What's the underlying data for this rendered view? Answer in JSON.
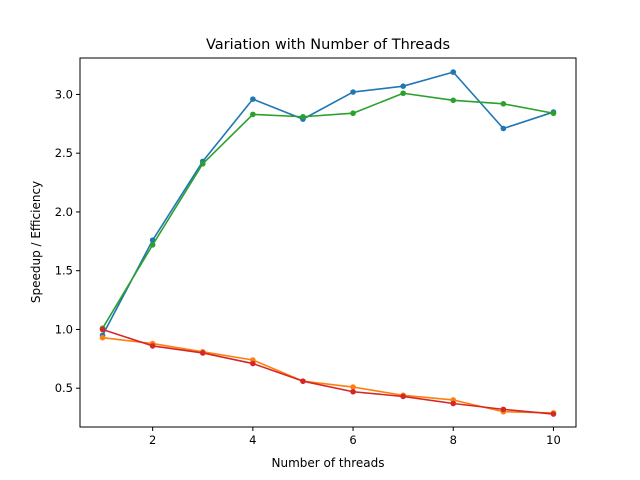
{
  "chart_data": {
    "type": "line",
    "title": "Variation with Number of Threads",
    "xlabel": "Number of threads",
    "ylabel": "Speedup / Efficiency",
    "xlim": [
      0.55,
      10.45
    ],
    "ylim": [
      0.17,
      3.31
    ],
    "x_ticks": [
      2,
      4,
      6,
      8,
      10
    ],
    "y_ticks": [
      0.5,
      1.0,
      1.5,
      2.0,
      2.5,
      3.0
    ],
    "x_tick_labels": [
      "2",
      "4",
      "6",
      "8",
      "10"
    ],
    "y_tick_labels": [
      "0.5",
      "1.0",
      "1.5",
      "2.0",
      "2.5",
      "3.0"
    ],
    "grid": false,
    "legend": "none",
    "x": [
      1,
      2,
      3,
      4,
      5,
      6,
      7,
      8,
      9,
      10
    ],
    "series": [
      {
        "color": "#1f77b4",
        "values": [
          0.95,
          1.76,
          2.43,
          2.96,
          2.79,
          3.02,
          3.07,
          3.19,
          2.71,
          2.85
        ]
      },
      {
        "color": "#ff7f0e",
        "values": [
          0.93,
          0.88,
          0.81,
          0.74,
          0.56,
          0.51,
          0.44,
          0.4,
          0.3,
          0.29
        ]
      },
      {
        "color": "#2ca02c",
        "values": [
          1.01,
          1.72,
          2.41,
          2.83,
          2.81,
          2.84,
          3.01,
          2.95,
          2.92,
          2.84
        ]
      },
      {
        "color": "#d62728",
        "values": [
          1.0,
          0.86,
          0.8,
          0.71,
          0.56,
          0.47,
          0.43,
          0.37,
          0.32,
          0.28
        ]
      }
    ]
  }
}
